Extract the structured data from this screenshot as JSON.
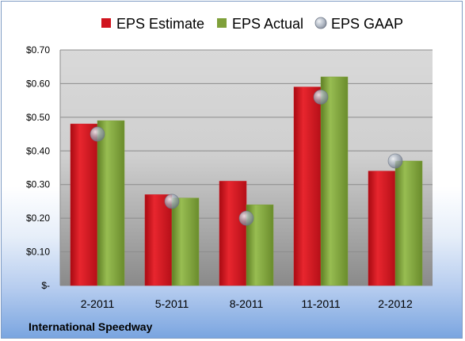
{
  "company": "International Speedway",
  "colors": {
    "estimate": "#d0141e",
    "actual": "#7fa03a",
    "gaap": "#a8b4c4"
  },
  "chart_data": {
    "type": "bar",
    "categories": [
      "2-2011",
      "5-2011",
      "8-2011",
      "11-2011",
      "2-2012"
    ],
    "series": [
      {
        "name": "EPS Estimate",
        "values": [
          0.48,
          0.27,
          0.31,
          0.59,
          0.34
        ]
      },
      {
        "name": "EPS Actual",
        "values": [
          0.49,
          0.26,
          0.24,
          0.62,
          0.37
        ]
      },
      {
        "name": "EPS GAAP",
        "values": [
          0.45,
          0.25,
          0.2,
          0.56,
          0.37
        ],
        "marker": "circle"
      }
    ],
    "ylim": [
      0,
      0.7
    ],
    "yticks": [
      0,
      0.1,
      0.2,
      0.3,
      0.4,
      0.5,
      0.6,
      0.7
    ],
    "ytick_labels": [
      "$-",
      "$0.10",
      "$0.20",
      "$0.30",
      "$0.40",
      "$0.50",
      "$0.60",
      "$0.70"
    ],
    "grid": true,
    "legend": "top"
  }
}
